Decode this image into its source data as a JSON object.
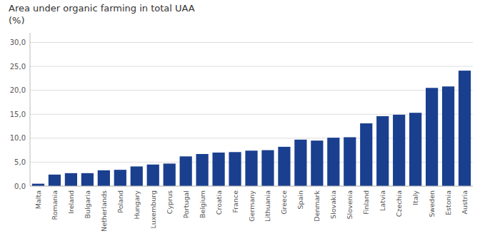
{
  "chart_data": {
    "type": "bar",
    "title": "Area under organic farming in total UAA",
    "subtitle": "(%)",
    "categories": [
      "Malta",
      "Romania",
      "Ireland",
      "Bulgaria",
      "Netherlands",
      "Poland",
      "Hungary",
      "Luxemburg",
      "Cyprus",
      "Portugal",
      "Belgium",
      "Croatia",
      "France",
      "Germany",
      "Lithuania",
      "Greece",
      "Spain",
      "Denmark",
      "Slovakia",
      "Slovenia",
      "Finland",
      "Latvia",
      "Czechia",
      "Italy",
      "Sweden",
      "Estonia",
      "Austria"
    ],
    "values": [
      0.5,
      2.4,
      2.7,
      2.7,
      3.3,
      3.4,
      4.1,
      4.5,
      4.7,
      6.2,
      6.7,
      7.0,
      7.1,
      7.4,
      7.5,
      8.2,
      9.7,
      9.5,
      10.1,
      10.2,
      13.1,
      14.6,
      14.9,
      15.3,
      20.5,
      20.8,
      24.1
    ],
    "color": "#1a3f8f",
    "ylim": [
      0,
      32
    ],
    "yticks": [
      {
        "value": 0.0,
        "label": "0,0"
      },
      {
        "value": 5.0,
        "label": "5,0"
      },
      {
        "value": 10.0,
        "label": "10,0"
      },
      {
        "value": 15.0,
        "label": "15,0"
      },
      {
        "value": 20.0,
        "label": "20,0"
      },
      {
        "value": 25.0,
        "label": "25,0"
      },
      {
        "value": 30.0,
        "label": "30,0"
      }
    ],
    "grid": true
  }
}
